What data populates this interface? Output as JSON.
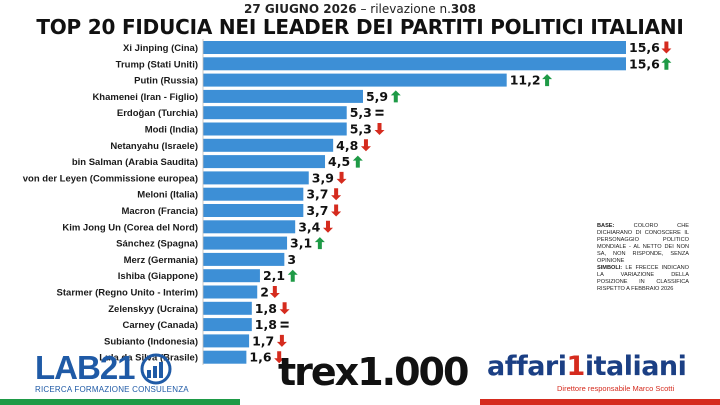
{
  "header": {
    "date": "27 GIUGNO 2026",
    "survey_label": "rilevazione n.",
    "survey_number": "308",
    "title": "TOP 20 FIDUCIA NEI LEADER DEI PARTITI POLITICI ITALIANI"
  },
  "chart_data": {
    "type": "bar",
    "orientation": "horizontal",
    "title": "TOP 20 FIDUCIA NEI LEADER DEI PARTITI POLITICI ITALIANI",
    "xlabel": "",
    "ylabel": "",
    "xlim": [
      0,
      15.6
    ],
    "grid": false,
    "bar_color": "#3d8fd6",
    "trend_colors": {
      "up": "#1e9a46",
      "down": "#d52b1e",
      "same": "#111111"
    },
    "categories": [
      "Xi Jinping (Cina)",
      "Trump (Stati Uniti)",
      "Putin (Russia)",
      "Khamenei (Iran - Figlio)",
      "Erdoğan (Turchia)",
      "Modi (India)",
      "Netanyahu (Israele)",
      "bin Salman (Arabia Saudita)",
      "von der Leyen (Commissione europea)",
      "Meloni (Italia)",
      "Macron (Francia)",
      "Kim Jong Un (Corea del Nord)",
      "Sánchez (Spagna)",
      "Merz (Germania)",
      "Ishiba (Giappone)",
      "Starmer (Regno Unito - Interim)",
      "Zelenskyy (Ucraina)",
      "Carney (Canada)",
      "Subianto (Indonesia)",
      "Lula da Silva (Brasile)"
    ],
    "values": [
      15.6,
      15.6,
      11.2,
      5.9,
      5.3,
      5.3,
      4.8,
      4.5,
      3.9,
      3.7,
      3.7,
      3.4,
      3.1,
      3,
      2.1,
      2,
      1.8,
      1.8,
      1.7,
      1.6
    ],
    "value_labels": [
      "15,6",
      "15,6",
      "11,2",
      "5,9",
      "5,3",
      "5,3",
      "4,8",
      "4,5",
      "3,9",
      "3,7",
      "3,7",
      "3,4",
      "3,1",
      "3",
      "2,1",
      "2",
      "1,8",
      "1,8",
      "1,7",
      "1,6"
    ],
    "trends": [
      "down",
      "up",
      "up",
      "up",
      "same",
      "down",
      "down",
      "up",
      "down",
      "down",
      "down",
      "down",
      "up",
      "none",
      "up",
      "down",
      "down",
      "same",
      "down",
      "down"
    ]
  },
  "notes": {
    "base_key": "BASE:",
    "base_text": "COLORO CHE DICHIARANO DI CONOSCERE IL PERSONAGGIO POLITICO MONDIALE - AL NETTO DEI NON SA, NON RISPONDE, SENZA OPINIONE",
    "simboli_key": "SIMBOLI:",
    "simboli_text": "LE FRECCE INDICANO LA VARIAZIONE DELLA POSIZIONE IN CLASSIFICA RISPETTO A FEBBRAIO 2026"
  },
  "logos": {
    "lab": "LAB21",
    "lab_sub": "RICERCA FORMAZIONE CONSULENZA",
    "tre": "trex1.000",
    "aff_a": "affari",
    "aff_b": "italiani",
    "aff_one": "1",
    "aff_sub": "Direttore responsabile Marco Scotti"
  }
}
